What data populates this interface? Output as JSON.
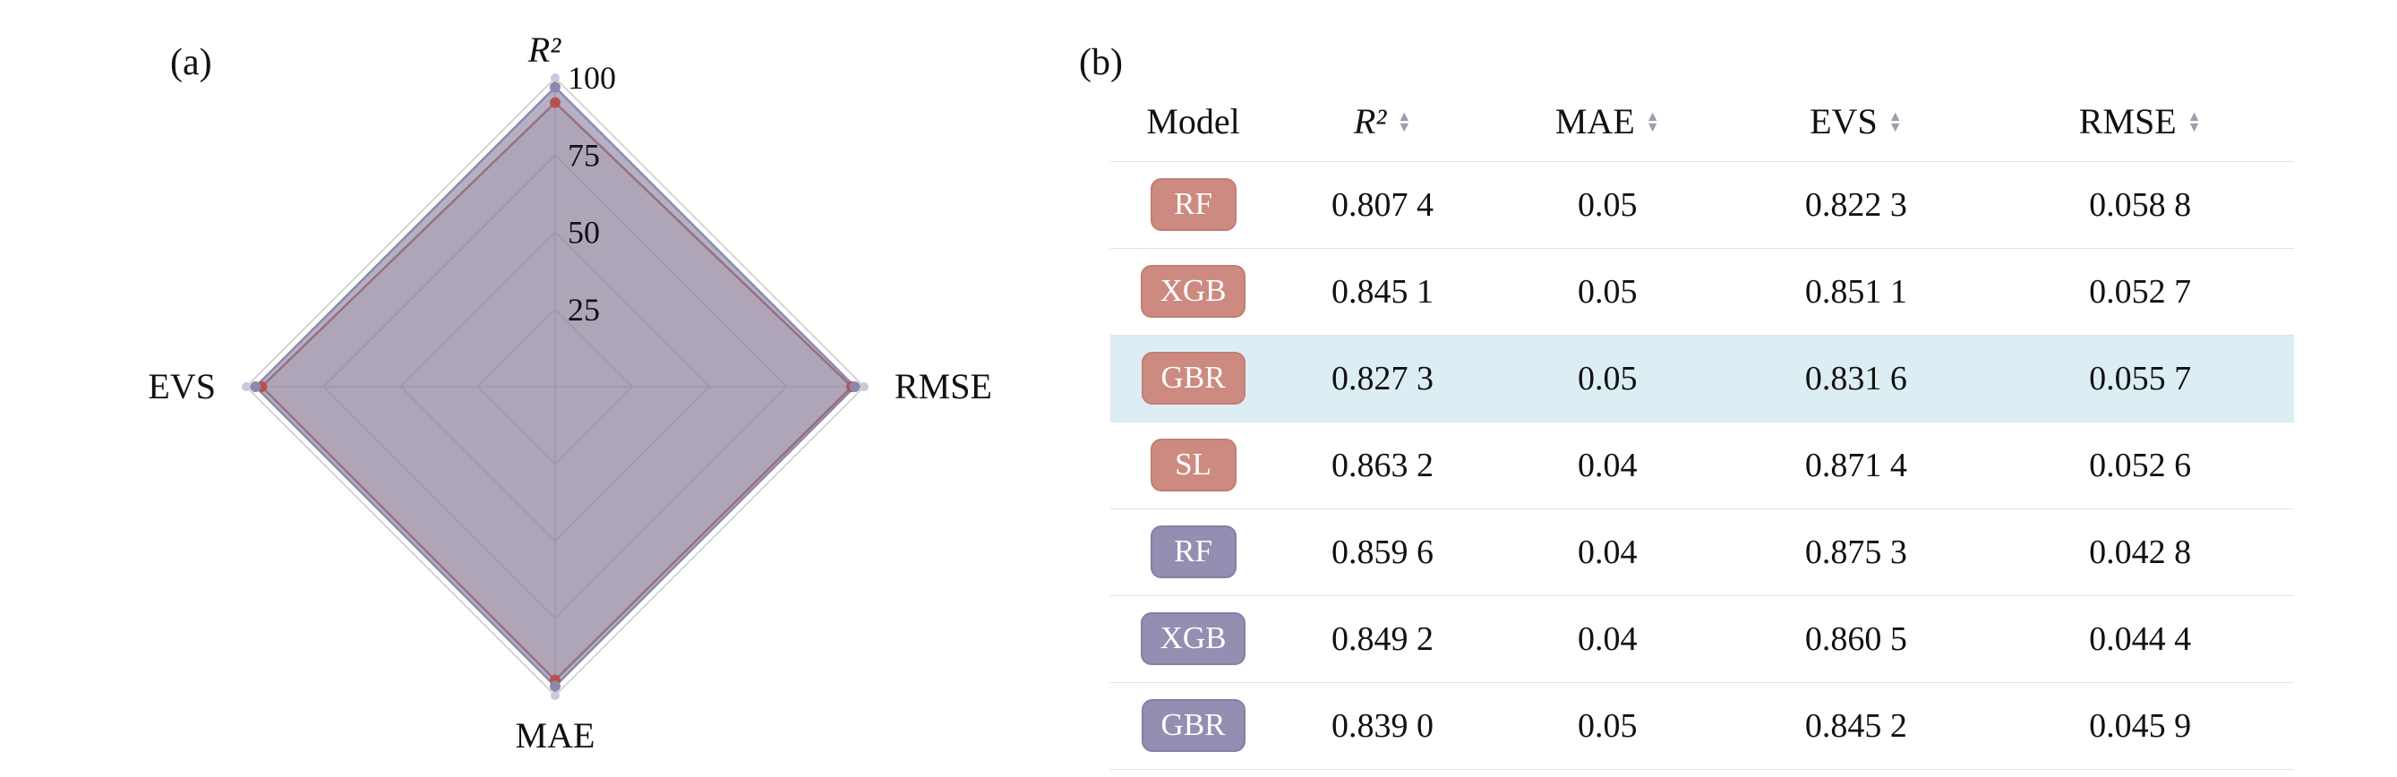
{
  "labels": {
    "panel_a": "(a)",
    "panel_b": "(b)"
  },
  "chart_data": [
    {
      "type": "radar",
      "title": "",
      "axes": [
        "R²",
        "RMSE",
        "MAE",
        "EVS"
      ],
      "ticks": [
        25,
        50,
        75,
        100
      ],
      "max": 100,
      "grid": true,
      "grid_color": "#c8c8c8",
      "series": [
        {
          "name": "red-series",
          "color": "#b5524e",
          "fill": "rgba(205,150,148,0.30)",
          "values": [
            92,
            96,
            95,
            95
          ]
        },
        {
          "name": "purple-series",
          "color": "#8d89ae",
          "fill": "rgba(134,129,162,0.62)",
          "values": [
            97,
            97,
            97,
            97
          ]
        }
      ]
    },
    {
      "type": "table",
      "columns": [
        {
          "label": "Model",
          "sortable": false
        },
        {
          "label": "R²",
          "sortable": true
        },
        {
          "label": "MAE",
          "sortable": true
        },
        {
          "label": "EVS",
          "sortable": true
        },
        {
          "label": "RMSE",
          "sortable": true
        }
      ],
      "rows": [
        {
          "model": "RF",
          "badge": "pink",
          "highlight": false,
          "r2": "0.807 4",
          "mae": "0.05",
          "evs": "0.822 3",
          "rmse": "0.058 8"
        },
        {
          "model": "XGB",
          "badge": "pink",
          "highlight": false,
          "r2": "0.845 1",
          "mae": "0.05",
          "evs": "0.851 1",
          "rmse": "0.052 7"
        },
        {
          "model": "GBR",
          "badge": "pink",
          "highlight": true,
          "r2": "0.827 3",
          "mae": "0.05",
          "evs": "0.831 6",
          "rmse": "0.055 7"
        },
        {
          "model": "SL",
          "badge": "pink",
          "highlight": false,
          "r2": "0.863 2",
          "mae": "0.04",
          "evs": "0.871 4",
          "rmse": "0.052 6"
        },
        {
          "model": "RF",
          "badge": "purple",
          "highlight": false,
          "r2": "0.859 6",
          "mae": "0.04",
          "evs": "0.875 3",
          "rmse": "0.042 8"
        },
        {
          "model": "XGB",
          "badge": "purple",
          "highlight": false,
          "r2": "0.849 2",
          "mae": "0.04",
          "evs": "0.860 5",
          "rmse": "0.044 4"
        },
        {
          "model": "GBR",
          "badge": "purple",
          "highlight": false,
          "r2": "0.839 0",
          "mae": "0.05",
          "evs": "0.845 2",
          "rmse": "0.045 9"
        }
      ],
      "highlight_color": "#ddedf4",
      "badge_colors": {
        "pink": "#cd8a81",
        "purple": "#928fb2"
      },
      "sort_icon": "up-down-triangles"
    }
  ]
}
